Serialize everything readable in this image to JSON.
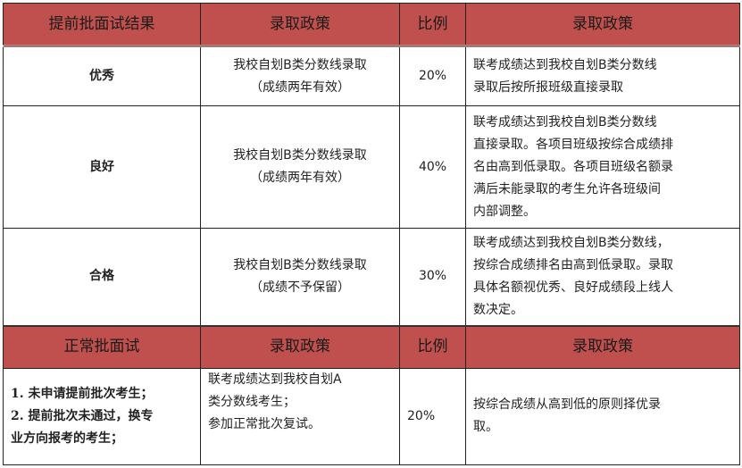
{
  "header_color": "#c0504d",
  "early": {
    "headers": [
      "提前批面试结果",
      "录取政策",
      "比例",
      "录取政策"
    ],
    "rows": [
      {
        "result": "优秀",
        "policy": [
          "我校自划B类分数线录取",
          "（成绩两年有效）"
        ],
        "ratio": "20%",
        "admission": [
          "联考成绩达到我校自划B类分数线",
          "录取后按所报班级直接录取"
        ]
      },
      {
        "result": "良好",
        "policy": [
          "我校自划B类分数线录取",
          "（成绩两年有效）"
        ],
        "ratio": "40%",
        "admission": [
          "联考成绩达到我校自划B类分数线",
          "直接录取。各项目班级按综合成绩排",
          "名由高到低录取。各项目班级名额录",
          "满后未能录取的考生允许各班级间",
          "内部调整。"
        ]
      },
      {
        "result": "合格",
        "policy": [
          "我校自划B类分数线录取",
          "（成绩不予保留）"
        ],
        "ratio": "30%",
        "admission": [
          "联考成绩达到我校自划B类分数线，",
          "按综合成绩排名由高到低录取。录取",
          "具体名额视优秀、良好成绩段上线人",
          "数决定。"
        ]
      }
    ]
  },
  "normal": {
    "headers": [
      "正常批面试",
      "录取政策",
      "比例",
      "录取政策"
    ],
    "row": {
      "result": [
        "1. 未申请提前批次考生；",
        "2. 提前批次未通过，换专",
        "业方向报考的考生；"
      ],
      "policy": [
        "联考成绩达到我校自划A",
        "类分数线考生；",
        "参加正常批次复试。"
      ],
      "ratio": "20%",
      "admission": [
        "按综合成绩从高到低的原则择优录",
        "取。"
      ]
    }
  }
}
